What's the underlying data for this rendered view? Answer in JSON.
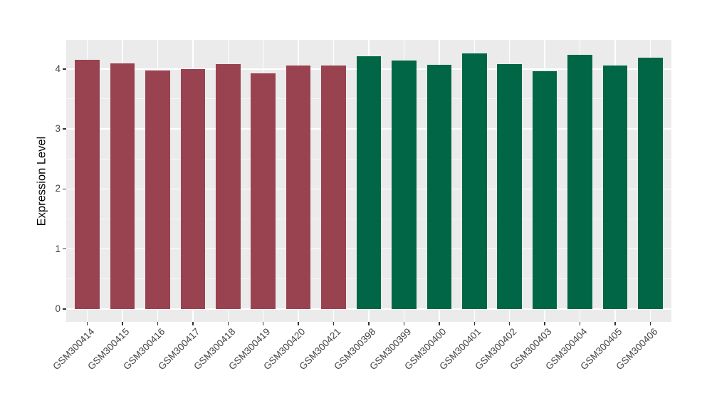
{
  "chart_data": {
    "type": "bar",
    "title": "",
    "xlabel": "",
    "ylabel": "Expression Level",
    "categories": [
      "GSM300414",
      "GSM300415",
      "GSM300416",
      "GSM300417",
      "GSM300418",
      "GSM300419",
      "GSM300420",
      "GSM300421",
      "GSM300398",
      "GSM300399",
      "GSM300400",
      "GSM300401",
      "GSM300402",
      "GSM300403",
      "GSM300404",
      "GSM300405",
      "GSM300406"
    ],
    "values": [
      4.15,
      4.09,
      3.97,
      4.0,
      4.08,
      3.93,
      4.06,
      4.06,
      4.21,
      4.14,
      4.07,
      4.26,
      4.08,
      3.96,
      4.23,
      4.06,
      4.19
    ],
    "groups": [
      1,
      1,
      1,
      1,
      1,
      1,
      1,
      1,
      2,
      2,
      2,
      2,
      2,
      2,
      2,
      2,
      2
    ],
    "group_colors": [
      "#9A4350",
      "#006645"
    ],
    "yticks": [
      0,
      1,
      2,
      3,
      4
    ],
    "yticks_minor": [
      0.5,
      1.5,
      2.5,
      3.5
    ],
    "ylim": [
      -0.215,
      4.485
    ],
    "bar_width_fraction": 0.7,
    "legend": "none",
    "grid": "white major and minor horizontal lines, white vertical line at each category, on grey panel",
    "panel_bg": "#EBEBEB",
    "tick_label_color": "#444444",
    "axis_title_color": "#000000",
    "tick_mark_color": "#333333"
  }
}
